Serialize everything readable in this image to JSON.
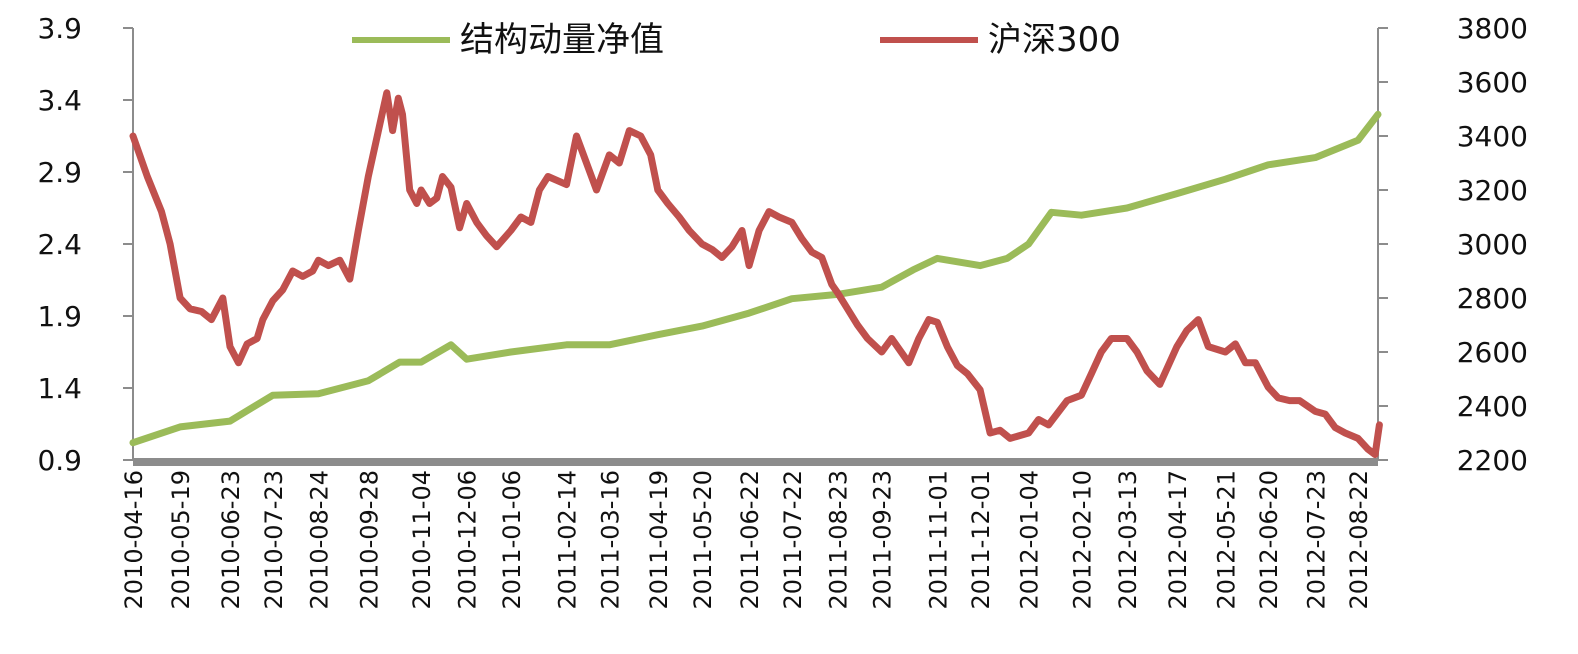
{
  "chart_data": {
    "type": "line",
    "title": "",
    "xlabel": "",
    "ylabel_left": "",
    "ylabel_right": "",
    "ylim_left": [
      0.9,
      3.9
    ],
    "yticks_left": [
      "3.9",
      "3.4",
      "2.9",
      "2.4",
      "1.9",
      "1.4",
      "0.9"
    ],
    "ylim_right": [
      2200,
      3800
    ],
    "yticks_right": [
      "3800",
      "3600",
      "3400",
      "3200",
      "3000",
      "2800",
      "2600",
      "2400",
      "2200"
    ],
    "x_ticks": [
      "2010-04-16",
      "2010-05-19",
      "2010-06-23",
      "2010-07-23",
      "2010-08-24",
      "2010-09-28",
      "2010-11-04",
      "2010-12-06",
      "2011-01-06",
      "2011-02-14",
      "2011-03-16",
      "2011-04-19",
      "2011-05-20",
      "2011-06-22",
      "2011-07-22",
      "2011-08-23",
      "2011-09-23",
      "2011-11-01",
      "2011-12-01",
      "2012-01-04",
      "2012-02-10",
      "2012-03-13",
      "2012-04-17",
      "2012-05-21",
      "2012-06-20",
      "2012-07-23",
      "2012-08-22"
    ],
    "legend_position": "top",
    "grid": false,
    "series": [
      {
        "name": "结构动量净值",
        "axis": "left",
        "color": "#9bbb59",
        "x": [
          "2010-04-16",
          "2010-05-19",
          "2010-06-23",
          "2010-07-23",
          "2010-08-24",
          "2010-09-28",
          "2010-10-20",
          "2010-11-04",
          "2010-11-25",
          "2010-12-06",
          "2011-01-06",
          "2011-02-14",
          "2011-03-16",
          "2011-04-19",
          "2011-05-20",
          "2011-06-22",
          "2011-07-22",
          "2011-08-23",
          "2011-09-23",
          "2011-10-15",
          "2011-11-01",
          "2011-12-01",
          "2011-12-20",
          "2012-01-04",
          "2012-01-20",
          "2012-02-10",
          "2012-03-13",
          "2012-04-17",
          "2012-05-21",
          "2012-06-20",
          "2012-07-23",
          "2012-08-22",
          "2012-09-05"
        ],
        "y": [
          1.02,
          1.13,
          1.17,
          1.35,
          1.36,
          1.45,
          1.58,
          1.58,
          1.7,
          1.6,
          1.65,
          1.7,
          1.7,
          1.77,
          1.83,
          1.92,
          2.02,
          2.05,
          2.1,
          2.22,
          2.3,
          2.25,
          2.3,
          2.4,
          2.62,
          2.6,
          2.65,
          2.75,
          2.85,
          2.95,
          3.0,
          3.12,
          3.3
        ]
      },
      {
        "name": "沪深300",
        "axis": "right",
        "color": "#c0504d",
        "x": [
          "2010-04-16",
          "2010-04-26",
          "2010-05-06",
          "2010-05-12",
          "2010-05-19",
          "2010-05-26",
          "2010-06-03",
          "2010-06-10",
          "2010-06-18",
          "2010-06-23",
          "2010-06-29",
          "2010-07-05",
          "2010-07-12",
          "2010-07-16",
          "2010-07-23",
          "2010-07-30",
          "2010-08-06",
          "2010-08-13",
          "2010-08-20",
          "2010-08-24",
          "2010-08-31",
          "2010-09-08",
          "2010-09-15",
          "2010-09-21",
          "2010-09-28",
          "2010-10-11",
          "2010-10-15",
          "2010-10-19",
          "2010-10-22",
          "2010-10-27",
          "2010-11-01",
          "2010-11-04",
          "2010-11-10",
          "2010-11-15",
          "2010-11-19",
          "2010-11-25",
          "2010-12-01",
          "2010-12-06",
          "2010-12-13",
          "2010-12-20",
          "2010-12-27",
          "2011-01-06",
          "2011-01-13",
          "2011-01-20",
          "2011-01-26",
          "2011-02-01",
          "2011-02-14",
          "2011-02-21",
          "2011-02-28",
          "2011-03-07",
          "2011-03-16",
          "2011-03-23",
          "2011-03-30",
          "2011-04-07",
          "2011-04-14",
          "2011-04-19",
          "2011-04-26",
          "2011-05-04",
          "2011-05-11",
          "2011-05-20",
          "2011-05-27",
          "2011-06-03",
          "2011-06-10",
          "2011-06-17",
          "2011-06-22",
          "2011-06-29",
          "2011-07-06",
          "2011-07-13",
          "2011-07-22",
          "2011-07-29",
          "2011-08-05",
          "2011-08-12",
          "2011-08-19",
          "2011-08-23",
          "2011-08-30",
          "2011-09-06",
          "2011-09-13",
          "2011-09-23",
          "2011-09-30",
          "2011-10-12",
          "2011-10-19",
          "2011-10-26",
          "2011-11-01",
          "2011-11-08",
          "2011-11-15",
          "2011-11-22",
          "2011-12-01",
          "2011-12-08",
          "2011-12-15",
          "2011-12-22",
          "2012-01-04",
          "2012-01-11",
          "2012-01-18",
          "2012-01-31",
          "2012-02-10",
          "2012-02-17",
          "2012-02-24",
          "2012-03-02",
          "2012-03-13",
          "2012-03-20",
          "2012-03-27",
          "2012-04-05",
          "2012-04-17",
          "2012-04-24",
          "2012-05-02",
          "2012-05-09",
          "2012-05-21",
          "2012-05-28",
          "2012-06-04",
          "2012-06-11",
          "2012-06-20",
          "2012-06-27",
          "2012-07-05",
          "2012-07-12",
          "2012-07-23",
          "2012-07-30",
          "2012-08-06",
          "2012-08-13",
          "2012-08-22",
          "2012-08-29",
          "2012-09-03",
          "2012-09-06"
        ],
        "y": [
          3400,
          3250,
          3120,
          3000,
          2800,
          2760,
          2750,
          2720,
          2800,
          2620,
          2560,
          2630,
          2650,
          2720,
          2790,
          2830,
          2900,
          2880,
          2900,
          2940,
          2920,
          2940,
          2870,
          3050,
          3250,
          3560,
          3420,
          3540,
          3480,
          3200,
          3150,
          3200,
          3150,
          3170,
          3250,
          3210,
          3060,
          3150,
          3080,
          3030,
          2990,
          3050,
          3100,
          3080,
          3200,
          3250,
          3220,
          3400,
          3300,
          3200,
          3330,
          3300,
          3420,
          3400,
          3330,
          3200,
          3150,
          3100,
          3050,
          3000,
          2980,
          2950,
          2990,
          3050,
          2920,
          3050,
          3120,
          3100,
          3080,
          3020,
          2970,
          2950,
          2850,
          2820,
          2760,
          2700,
          2650,
          2600,
          2650,
          2560,
          2650,
          2720,
          2710,
          2620,
          2550,
          2520,
          2460,
          2300,
          2310,
          2280,
          2300,
          2350,
          2330,
          2420,
          2440,
          2520,
          2600,
          2650,
          2650,
          2600,
          2530,
          2480,
          2620,
          2680,
          2720,
          2620,
          2600,
          2630,
          2560,
          2560,
          2470,
          2430,
          2420,
          2420,
          2380,
          2370,
          2320,
          2300,
          2280,
          2240,
          2220,
          2330
        ]
      }
    ]
  }
}
